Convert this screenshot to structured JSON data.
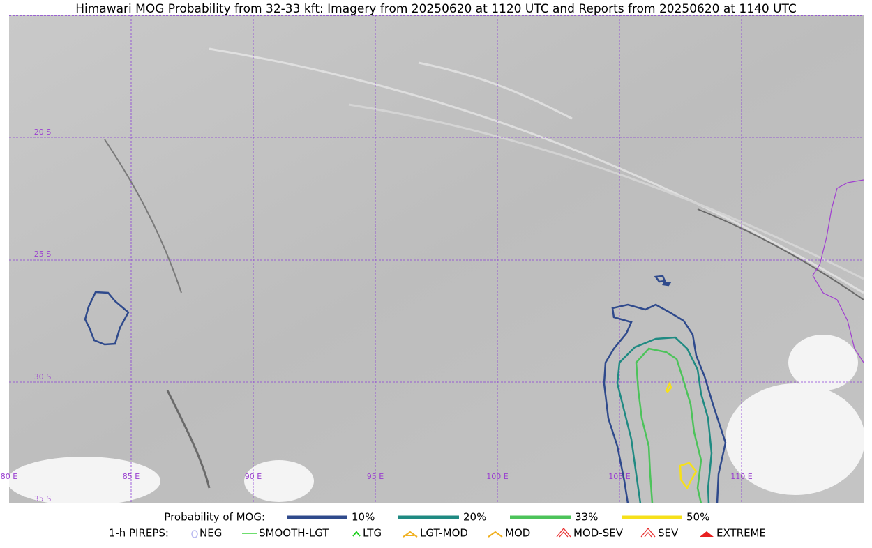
{
  "header": {
    "title": "Himawari MOG Probability from 32-33 kft: Imagery from 20250620 at 1120 UTC and Reports from 20250620 at 1140 UTC"
  },
  "map": {
    "lat_labels": [
      "20 S",
      "25 S",
      "30 S",
      "35 S"
    ],
    "lon_labels": [
      "80 E",
      "85 E",
      "90 E",
      "95 E",
      "100 E",
      "105 E",
      "110 E"
    ]
  },
  "legend": {
    "probability": {
      "title": "Probability of MOG:",
      "items": [
        {
          "label": "10%",
          "color": "#2f4a8c"
        },
        {
          "label": "20%",
          "color": "#1f8a82"
        },
        {
          "label": "33%",
          "color": "#4cc35a"
        },
        {
          "label": "50%",
          "color": "#f6e01a"
        }
      ]
    },
    "pireps": {
      "title": "1-h PIREPS:",
      "items": [
        "NEG",
        "SMOOTH-LGT",
        "LTG",
        "LGT-MOD",
        "MOD",
        "MOD-SEV",
        "SEV",
        "EXTREME"
      ]
    }
  }
}
